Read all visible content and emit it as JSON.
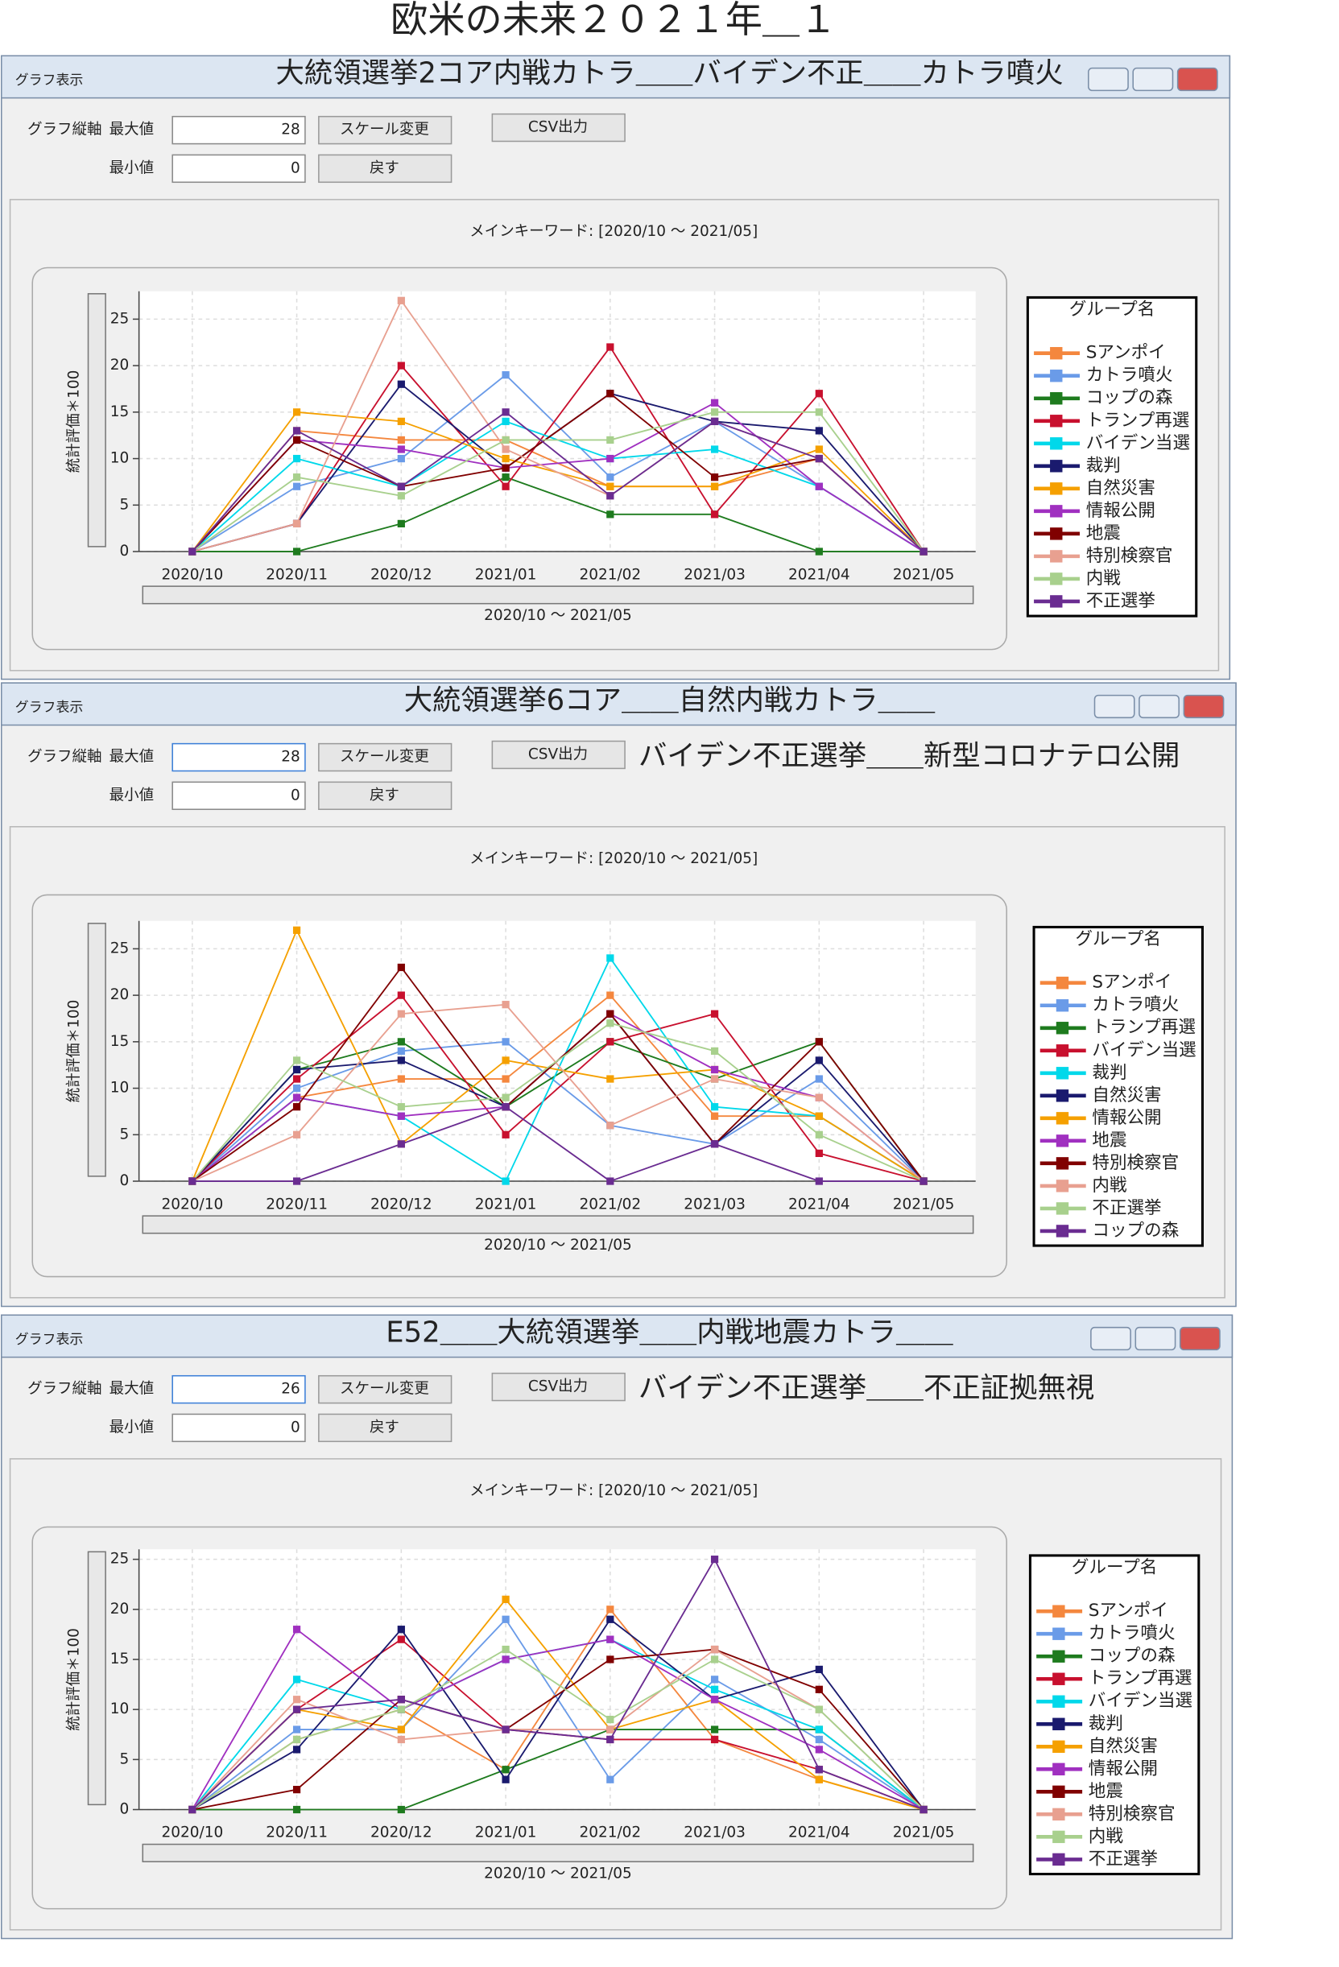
{
  "page_title": "欧米の未来２０２１年＿１",
  "windows": [
    {
      "label": "グラフ表示",
      "caption": "大統領選挙2コア内戦カトラ＿＿バイデン不正＿＿カトラ噴火",
      "axis_label": "グラフ縦軸",
      "max_label": "最大値",
      "min_label": "最小値",
      "scale_button": "スケール変更",
      "csv_button": "CSV出力",
      "back_button": "戻す"
    },
    {
      "label": "グラフ表示",
      "caption": "大統領選挙6コア＿＿自然内戦カトラ＿＿",
      "caption2": "バイデン不正選挙＿＿新型コロナテロ公開",
      "axis_label": "グラフ縦軸",
      "max_label": "最大値",
      "min_label": "最小値",
      "scale_button": "スケール変更",
      "csv_button": "CSV出力",
      "back_button": "戻す"
    },
    {
      "label": "グラフ表示",
      "caption": "E52＿＿大統領選挙＿＿内戦地震カトラ＿＿",
      "caption2": "バイデン不正選挙＿＿不正証拠無視",
      "axis_label": "グラフ縦軸",
      "max_label": "最大値",
      "min_label": "最小値",
      "scale_button": "スケール変更",
      "csv_button": "CSV出力",
      "back_button": "戻す"
    }
  ],
  "chart_data": [
    {
      "type": "line",
      "title": "メインキーワード: [2020/10 〜 2021/05]",
      "xlabel": "2020/10 〜 2021/05",
      "ylabel": "統計評価＊100",
      "legend_title": "グループ名",
      "grid": true,
      "categories": [
        "2020/10",
        "2020/11",
        "2020/12",
        "2021/01",
        "2021/02",
        "2021/03",
        "2021/04",
        "2021/05"
      ],
      "ylim": [
        0,
        28
      ],
      "yticks": [
        0,
        5,
        10,
        15,
        20,
        25
      ],
      "series": [
        {
          "name": "Sアンポイ",
          "color": "#f4873e",
          "values": [
            0,
            13,
            12,
            12,
            7,
            7,
            10,
            0
          ]
        },
        {
          "name": "カトラ噴火",
          "color": "#6a9be8",
          "values": [
            0,
            7,
            10,
            19,
            8,
            14,
            7,
            0
          ]
        },
        {
          "name": "コップの森",
          "color": "#1e7b1e",
          "values": [
            0,
            0,
            3,
            8,
            4,
            4,
            0,
            0
          ]
        },
        {
          "name": "トランプ再選",
          "color": "#c8102e",
          "values": [
            0,
            3,
            20,
            7,
            22,
            4,
            17,
            0
          ]
        },
        {
          "name": "バイデン当選",
          "color": "#00d8ea",
          "values": [
            0,
            10,
            7,
            14,
            10,
            11,
            7,
            0
          ]
        },
        {
          "name": "裁判",
          "color": "#1a1a6e",
          "values": [
            0,
            3,
            18,
            9,
            17,
            14,
            13,
            0
          ]
        },
        {
          "name": "自然災害",
          "color": "#f5a000",
          "values": [
            0,
            15,
            14,
            10,
            7,
            7,
            11,
            0
          ]
        },
        {
          "name": "情報公開",
          "color": "#a030c0",
          "values": [
            0,
            12,
            11,
            9,
            10,
            16,
            7,
            0
          ]
        },
        {
          "name": "地震",
          "color": "#800000",
          "values": [
            0,
            12,
            7,
            9,
            17,
            8,
            10,
            0
          ]
        },
        {
          "name": "特別検察官",
          "color": "#e8a090",
          "values": [
            0,
            3,
            27,
            11,
            6,
            14,
            10,
            0
          ]
        },
        {
          "name": "内戦",
          "color": "#a8d08d",
          "values": [
            0,
            8,
            6,
            12,
            12,
            15,
            15,
            0
          ]
        },
        {
          "name": "不正選挙",
          "color": "#6a2c91",
          "values": [
            0,
            13,
            7,
            15,
            6,
            14,
            10,
            0
          ]
        }
      ]
    },
    {
      "type": "line",
      "title": "メインキーワード: [2020/10 〜 2021/05]",
      "xlabel": "2020/10 〜 2021/05",
      "ylabel": "統計評価＊100",
      "legend_title": "グループ名",
      "grid": true,
      "categories": [
        "2020/10",
        "2020/11",
        "2020/12",
        "2021/01",
        "2021/02",
        "2021/03",
        "2021/04",
        "2021/05"
      ],
      "ylim": [
        0,
        28
      ],
      "yticks": [
        0,
        5,
        10,
        15,
        20,
        25
      ],
      "series": [
        {
          "name": "Sアンポイ",
          "color": "#f4873e",
          "values": [
            0,
            9,
            11,
            11,
            20,
            7,
            7,
            0
          ]
        },
        {
          "name": "カトラ噴火",
          "color": "#6a9be8",
          "values": [
            0,
            10,
            14,
            15,
            6,
            4,
            11,
            0
          ]
        },
        {
          "name": "トランプ再選",
          "color": "#1e7b1e",
          "values": [
            0,
            12,
            15,
            8,
            15,
            11,
            15,
            0
          ]
        },
        {
          "name": "バイデン当選",
          "color": "#c8102e",
          "values": [
            0,
            11,
            20,
            5,
            15,
            18,
            3,
            0
          ]
        },
        {
          "name": "裁判",
          "color": "#00d8ea",
          "values": [
            0,
            9,
            7,
            0,
            24,
            8,
            7,
            0
          ]
        },
        {
          "name": "自然災害",
          "color": "#1a1a6e",
          "values": [
            0,
            12,
            13,
            8,
            18,
            4,
            13,
            0
          ]
        },
        {
          "name": "情報公開",
          "color": "#f5a000",
          "values": [
            0,
            27,
            4,
            13,
            11,
            12,
            7,
            0
          ]
        },
        {
          "name": "地震",
          "color": "#a030c0",
          "values": [
            0,
            9,
            7,
            8,
            18,
            12,
            9,
            0
          ]
        },
        {
          "name": "特別検察官",
          "color": "#800000",
          "values": [
            0,
            8,
            23,
            8,
            18,
            4,
            15,
            0
          ]
        },
        {
          "name": "内戦",
          "color": "#e8a090",
          "values": [
            0,
            5,
            18,
            19,
            6,
            11,
            9,
            0
          ]
        },
        {
          "name": "不正選挙",
          "color": "#a8d08d",
          "values": [
            0,
            13,
            8,
            9,
            17,
            14,
            5,
            0
          ]
        },
        {
          "name": "コップの森",
          "color": "#6a2c91",
          "values": [
            0,
            0,
            4,
            8,
            0,
            4,
            0,
            0
          ]
        }
      ]
    },
    {
      "type": "line",
      "title": "メインキーワード: [2020/10 〜 2021/05]",
      "xlabel": "2020/10 〜 2021/05",
      "ylabel": "統計評価＊100",
      "legend_title": "グループ名",
      "grid": true,
      "categories": [
        "2020/10",
        "2020/11",
        "2020/12",
        "2021/01",
        "2021/02",
        "2021/03",
        "2021/04",
        "2021/05"
      ],
      "ylim": [
        0,
        26
      ],
      "yticks": [
        0,
        5,
        10,
        15,
        20,
        25
      ],
      "series": [
        {
          "name": "Sアンポイ",
          "color": "#f4873e",
          "values": [
            0,
            7,
            10,
            4,
            20,
            7,
            3,
            0
          ]
        },
        {
          "name": "カトラ噴火",
          "color": "#6a9be8",
          "values": [
            0,
            8,
            8,
            19,
            3,
            13,
            7,
            0
          ]
        },
        {
          "name": "コップの森",
          "color": "#1e7b1e",
          "values": [
            0,
            0,
            0,
            4,
            8,
            8,
            8,
            0
          ]
        },
        {
          "name": "トランプ再選",
          "color": "#c8102e",
          "values": [
            0,
            10,
            17,
            8,
            7,
            7,
            4,
            0
          ]
        },
        {
          "name": "バイデン当選",
          "color": "#00d8ea",
          "values": [
            0,
            13,
            10,
            15,
            17,
            12,
            8,
            0
          ]
        },
        {
          "name": "裁判",
          "color": "#1a1a6e",
          "values": [
            0,
            6,
            18,
            3,
            19,
            11,
            14,
            0
          ]
        },
        {
          "name": "自然災害",
          "color": "#f5a000",
          "values": [
            0,
            10,
            8,
            21,
            8,
            11,
            3,
            0
          ]
        },
        {
          "name": "情報公開",
          "color": "#a030c0",
          "values": [
            0,
            18,
            10,
            15,
            17,
            11,
            6,
            0
          ]
        },
        {
          "name": "地震",
          "color": "#800000",
          "values": [
            0,
            2,
            11,
            8,
            15,
            16,
            12,
            0
          ]
        },
        {
          "name": "特別検察官",
          "color": "#e8a090",
          "values": [
            0,
            11,
            7,
            8,
            8,
            16,
            10,
            0
          ]
        },
        {
          "name": "内戦",
          "color": "#a8d08d",
          "values": [
            0,
            7,
            10,
            16,
            9,
            15,
            10,
            0
          ]
        },
        {
          "name": "不正選挙",
          "color": "#6a2c91",
          "values": [
            0,
            10,
            11,
            8,
            7,
            25,
            4,
            0
          ]
        }
      ]
    }
  ]
}
